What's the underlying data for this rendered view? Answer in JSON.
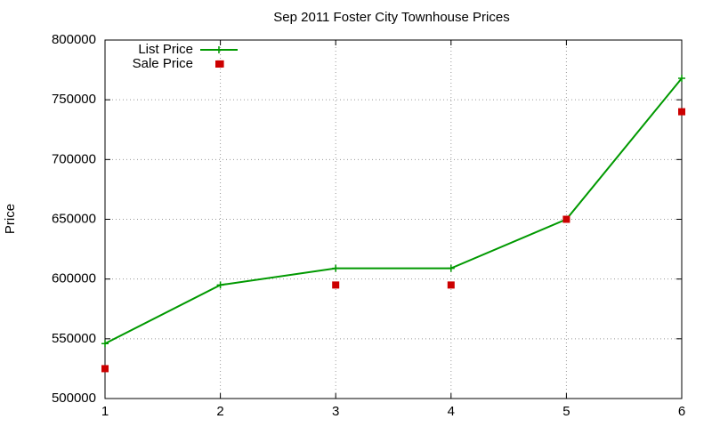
{
  "chart_data": {
    "type": "line",
    "title": "Sep 2011 Foster City Townhouse Prices",
    "y_label": "Price",
    "x": [
      1,
      2,
      3,
      4,
      5,
      6
    ],
    "series": [
      {
        "name": "List Price",
        "color": "#009900",
        "line": true,
        "marker": "plus",
        "values": [
          546000,
          595000,
          609000,
          609000,
          650000,
          768000
        ]
      },
      {
        "name": "Sale Price",
        "color": "#cc0000",
        "line": false,
        "marker": "square",
        "values": [
          525000,
          780000,
          595000,
          595000,
          650000,
          740000
        ]
      }
    ],
    "xlim": [
      1,
      6
    ],
    "xticks": [
      1,
      2,
      3,
      4,
      5,
      6
    ],
    "ylim": [
      500000,
      800000
    ],
    "yticks": [
      500000,
      550000,
      600000,
      650000,
      700000,
      750000,
      800000
    ],
    "grid": true,
    "legend": "top-left"
  }
}
